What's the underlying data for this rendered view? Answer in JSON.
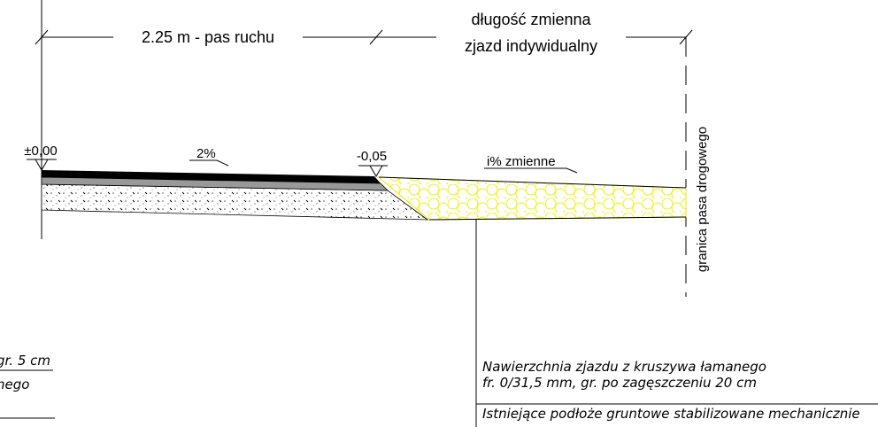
{
  "dimensions": {
    "left": "2.25 m - pas ruchu",
    "right_line1": "długość zmienna",
    "right_line2": "zjazd indywidualny"
  },
  "levels": {
    "start": "±0,00",
    "edge": "-0,05"
  },
  "slopes": {
    "lane": "2%",
    "driveway": "i% zmienne"
  },
  "boundary": "granica pasa drogowego",
  "left_notes": {
    "line1": "gr. 5 cm",
    "line2": "nego"
  },
  "right_notes": {
    "line1": "Nawierzchnia zjazdu z kruszywa łamanego",
    "line2": "fr. 0/31,5 mm, gr. po zagęszczeniu 20 cm",
    "line3": "Istniejące podłoże gruntowe stabilizowane mechanicznie"
  }
}
